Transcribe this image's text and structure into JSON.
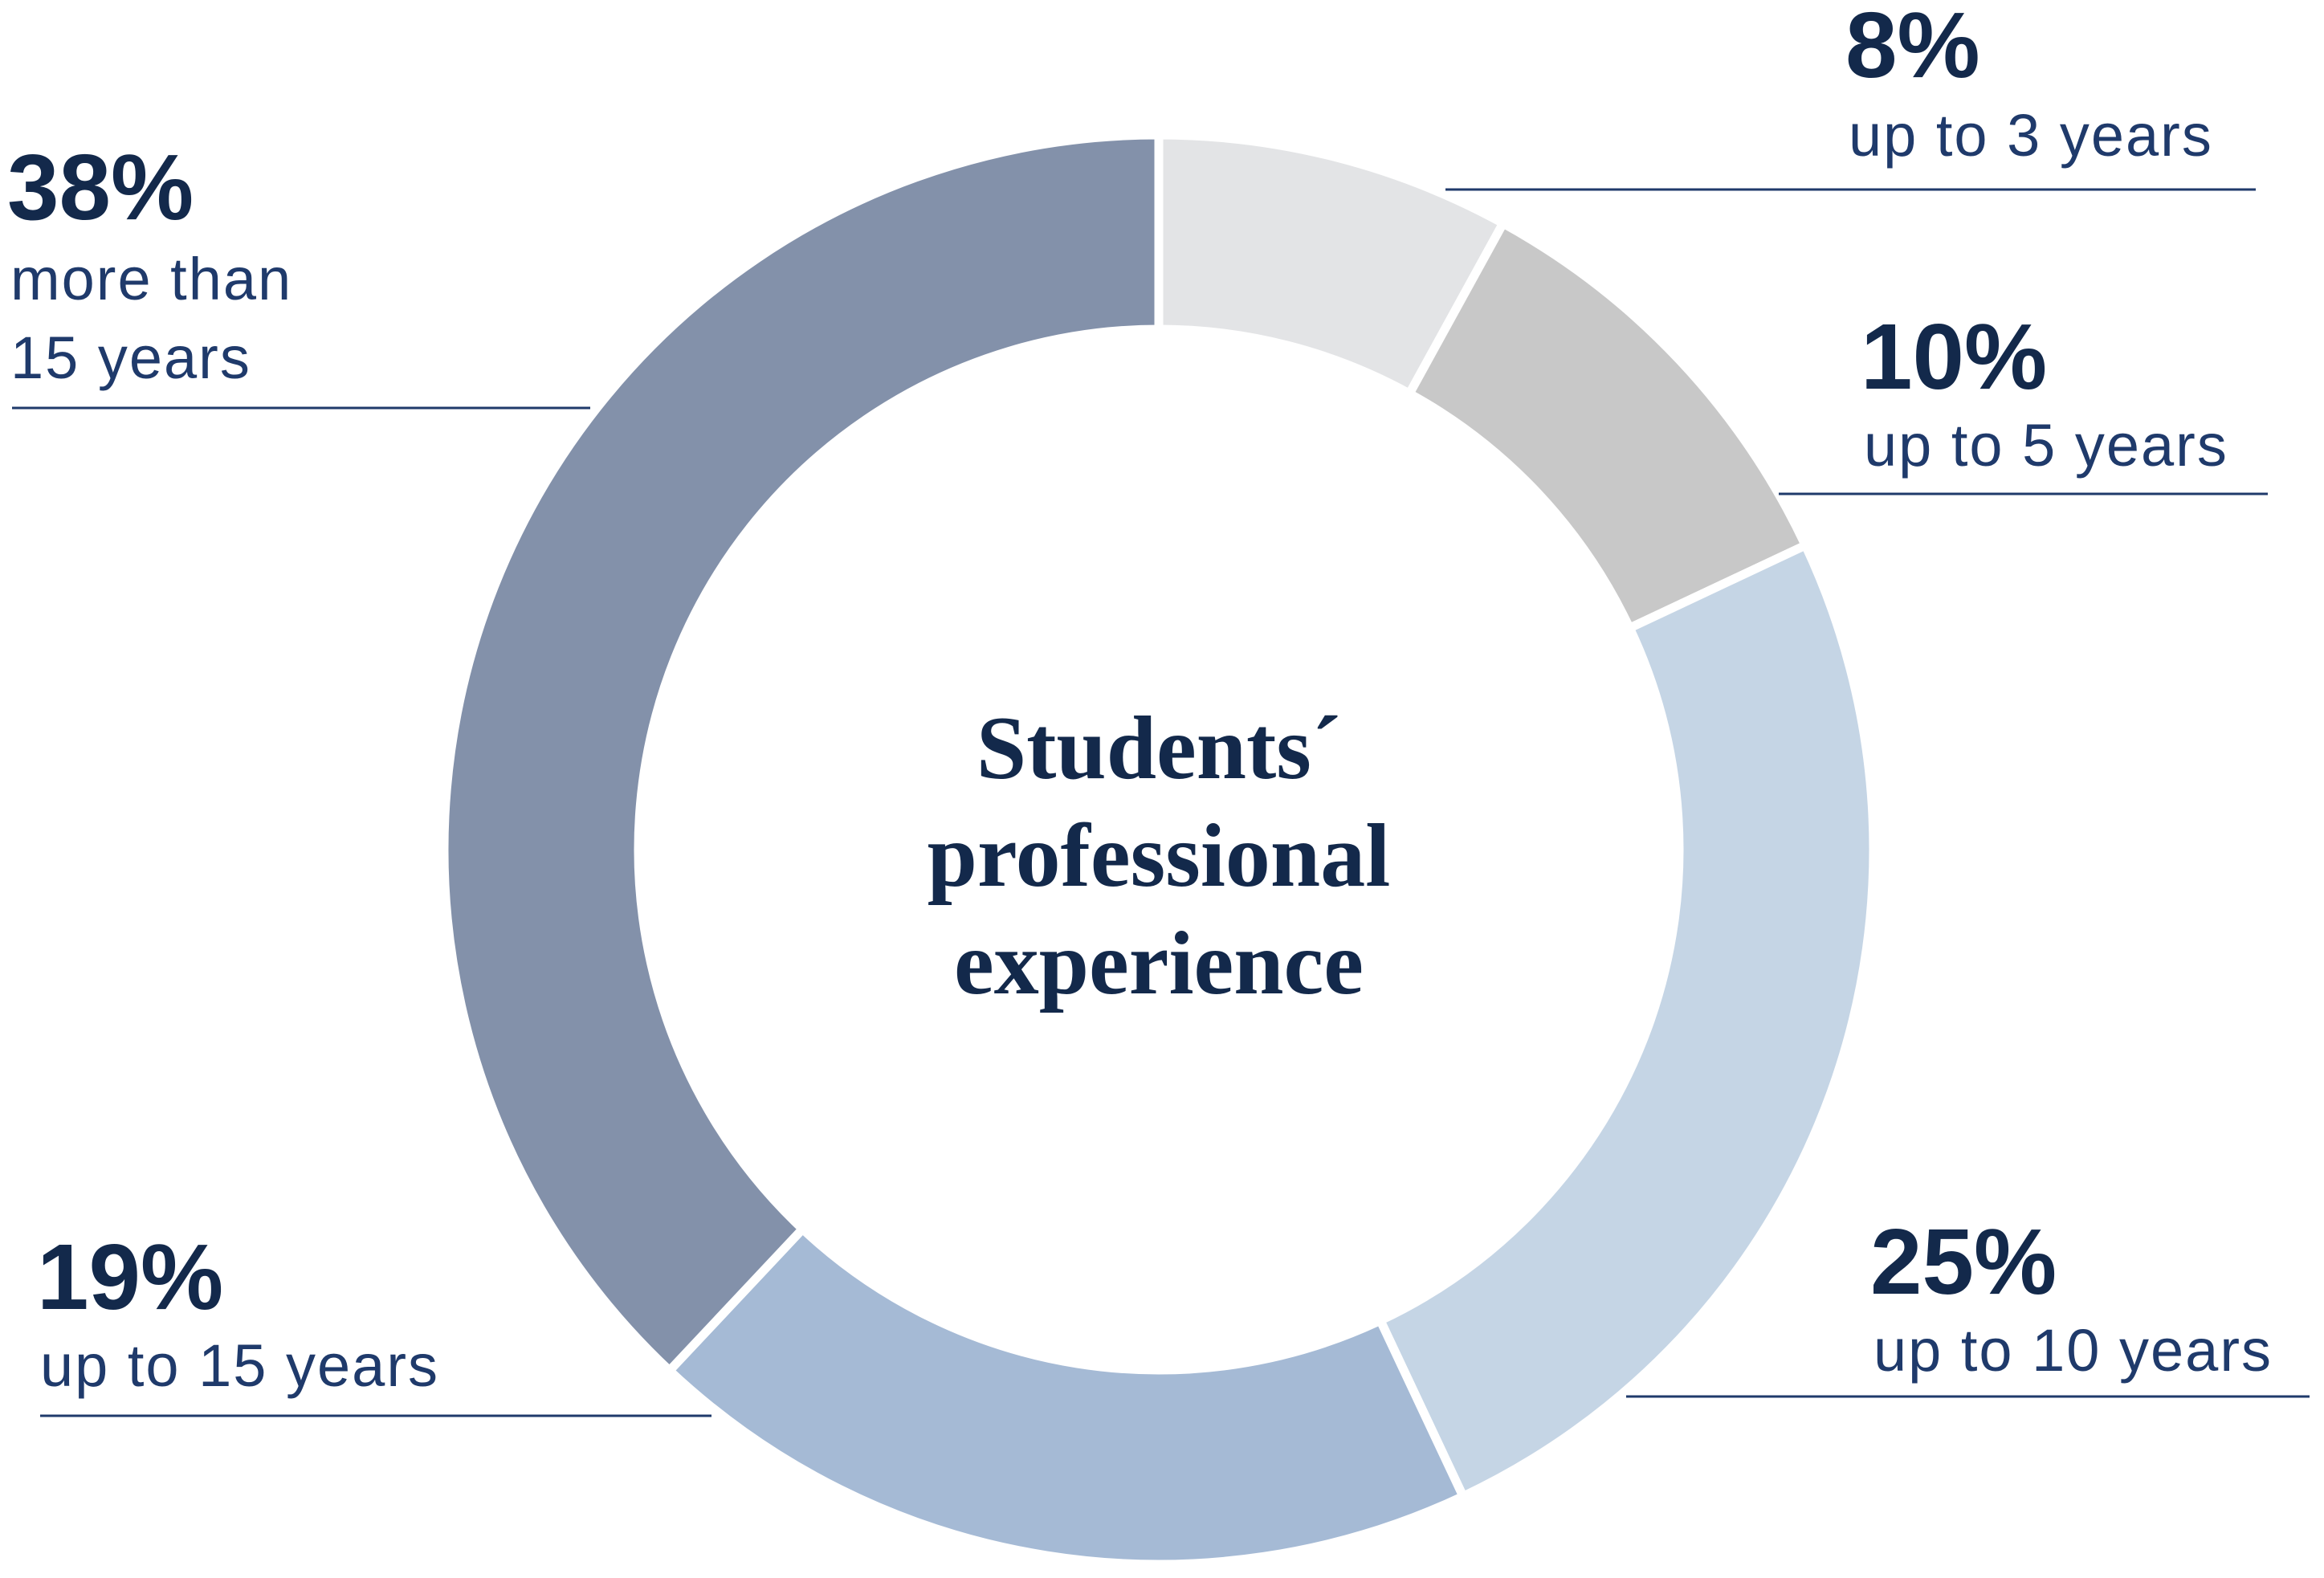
{
  "chart_data": {
    "type": "donut",
    "title": "Students´ professional experience",
    "categories": [
      "up to 3 years",
      "up to 5 years",
      "up to 10 years",
      "up to 15 years",
      "more than 15 years"
    ],
    "values": [
      8,
      10,
      25,
      19,
      38
    ],
    "value_labels": [
      "8%",
      "10%",
      "25%",
      "19%",
      "38%"
    ],
    "colors": [
      "#e3e4e6",
      "#c8c8c8",
      "#c5d5e5",
      "#a5bad5",
      "#8391aa"
    ]
  }
}
